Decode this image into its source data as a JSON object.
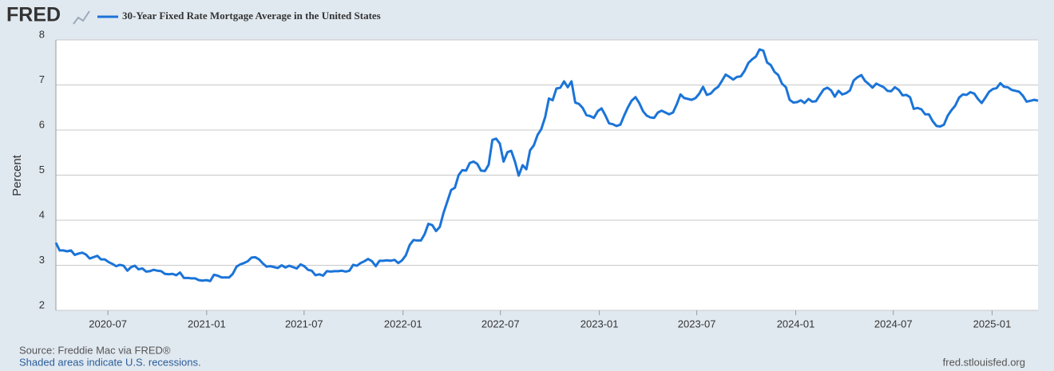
{
  "logo": "FRED",
  "footer": {
    "source": "Source: Freddie Mac via FRED®",
    "note": "Shaded areas indicate U.S. recessions.",
    "site": "fred.stlouisfed.org"
  },
  "chart_data": {
    "type": "line",
    "ylabel": "Percent",
    "grid": true,
    "xlim": [
      2020.232,
      2025.234
    ],
    "ylim": [
      2,
      8
    ],
    "yticks": [
      2,
      3,
      4,
      5,
      6,
      7,
      8
    ],
    "xticks": [
      {
        "value": 2020.497,
        "label": "2020-07"
      },
      {
        "value": 2021.0,
        "label": "2021-01"
      },
      {
        "value": 2021.496,
        "label": "2021-07"
      },
      {
        "value": 2022.0,
        "label": "2022-01"
      },
      {
        "value": 2022.496,
        "label": "2022-07"
      },
      {
        "value": 2023.0,
        "label": "2023-01"
      },
      {
        "value": 2023.496,
        "label": "2023-07"
      },
      {
        "value": 2024.0,
        "label": "2024-01"
      },
      {
        "value": 2024.497,
        "label": "2024-07"
      },
      {
        "value": 2025.0,
        "label": "2025-01"
      }
    ],
    "x": [
      2020.232,
      2020.251,
      2020.27,
      2020.289,
      2020.309,
      2020.328,
      2020.347,
      2020.366,
      2020.385,
      2020.404,
      2020.424,
      2020.443,
      2020.462,
      2020.481,
      2020.501,
      2020.52,
      2020.539,
      2020.558,
      2020.577,
      2020.596,
      2020.615,
      2020.634,
      2020.653,
      2020.672,
      2020.692,
      2020.711,
      2020.73,
      2020.749,
      2020.768,
      2020.787,
      2020.807,
      2020.826,
      2020.845,
      2020.864,
      2020.884,
      2020.903,
      2020.922,
      2020.941,
      2020.96,
      2020.979,
      2020.999,
      2021.018,
      2021.037,
      2021.056,
      2021.076,
      2021.095,
      2021.114,
      2021.133,
      2021.152,
      2021.171,
      2021.19,
      2021.209,
      2021.228,
      2021.247,
      2021.267,
      2021.286,
      2021.305,
      2021.324,
      2021.343,
      2021.362,
      2021.382,
      2021.401,
      2021.42,
      2021.439,
      2021.459,
      2021.478,
      2021.497,
      2021.516,
      2021.535,
      2021.554,
      2021.574,
      2021.593,
      2021.612,
      2021.631,
      2021.651,
      2021.67,
      2021.689,
      2021.708,
      2021.727,
      2021.746,
      2021.765,
      2021.784,
      2021.803,
      2021.822,
      2021.842,
      2021.861,
      2021.88,
      2021.899,
      2021.918,
      2021.937,
      2021.957,
      2021.976,
      2021.995,
      2022.014,
      2022.034,
      2022.053,
      2022.072,
      2022.091,
      2022.11,
      2022.129,
      2022.149,
      2022.168,
      2022.187,
      2022.206,
      2022.226,
      2022.245,
      2022.264,
      2022.283,
      2022.302,
      2022.321,
      2022.34,
      2022.359,
      2022.378,
      2022.397,
      2022.417,
      2022.436,
      2022.455,
      2022.474,
      2022.493,
      2022.512,
      2022.532,
      2022.551,
      2022.57,
      2022.589,
      2022.609,
      2022.628,
      2022.647,
      2022.666,
      2022.685,
      2022.704,
      2022.724,
      2022.743,
      2022.762,
      2022.781,
      2022.801,
      2022.82,
      2022.839,
      2022.858,
      2022.877,
      2022.896,
      2022.915,
      2022.934,
      2022.953,
      2022.972,
      2022.992,
      2023.011,
      2023.03,
      2023.049,
      2023.068,
      2023.087,
      2023.107,
      2023.126,
      2023.145,
      2023.164,
      2023.184,
      2023.203,
      2023.222,
      2023.241,
      2023.26,
      2023.279,
      2023.298,
      2023.317,
      2023.336,
      2023.355,
      2023.375,
      2023.394,
      2023.413,
      2023.432,
      2023.451,
      2023.47,
      2023.49,
      2023.509,
      2023.528,
      2023.547,
      2023.567,
      2023.586,
      2023.605,
      2023.624,
      2023.643,
      2023.662,
      2023.682,
      2023.701,
      2023.72,
      2023.739,
      2023.759,
      2023.778,
      2023.797,
      2023.816,
      2023.835,
      2023.854,
      2023.873,
      2023.892,
      2023.911,
      2023.93,
      2023.95,
      2023.969,
      2023.988,
      2024.007,
      2024.026,
      2024.045,
      2024.065,
      2024.084,
      2024.103,
      2024.122,
      2024.142,
      2024.161,
      2024.18,
      2024.199,
      2024.218,
      2024.237,
      2024.257,
      2024.276,
      2024.295,
      2024.314,
      2024.334,
      2024.353,
      2024.372,
      2024.391,
      2024.41,
      2024.429,
      2024.448,
      2024.467,
      2024.486,
      2024.505,
      2024.525,
      2024.544,
      2024.563,
      2024.582,
      2024.601,
      2024.62,
      2024.64,
      2024.659,
      2024.678,
      2024.697,
      2024.717,
      2024.736,
      2024.755,
      2024.774,
      2024.793,
      2024.812,
      2024.832,
      2024.851,
      2024.87,
      2024.889,
      2024.909,
      2024.928,
      2024.947,
      2024.966,
      2024.985,
      2025.004,
      2025.023,
      2025.042,
      2025.061,
      2025.08,
      2025.1,
      2025.119,
      2025.138,
      2025.157,
      2025.176,
      2025.195,
      2025.215,
      2025.234
    ],
    "series": [
      {
        "name": "30-Year Fixed Rate Mortgage Average in the United States",
        "color": "#1b74d8",
        "values": [
          3.5,
          3.33,
          3.33,
          3.31,
          3.33,
          3.23,
          3.26,
          3.28,
          3.24,
          3.15,
          3.18,
          3.21,
          3.13,
          3.13,
          3.07,
          3.03,
          2.98,
          3.01,
          2.99,
          2.88,
          2.96,
          2.99,
          2.91,
          2.93,
          2.86,
          2.87,
          2.9,
          2.88,
          2.87,
          2.81,
          2.8,
          2.81,
          2.78,
          2.84,
          2.72,
          2.72,
          2.71,
          2.71,
          2.67,
          2.66,
          2.67,
          2.65,
          2.79,
          2.77,
          2.73,
          2.73,
          2.73,
          2.81,
          2.97,
          3.02,
          3.05,
          3.09,
          3.17,
          3.18,
          3.13,
          3.04,
          2.97,
          2.98,
          2.96,
          2.94,
          3.0,
          2.95,
          2.99,
          2.96,
          2.93,
          3.02,
          2.98,
          2.9,
          2.88,
          2.78,
          2.8,
          2.77,
          2.87,
          2.86,
          2.87,
          2.87,
          2.88,
          2.86,
          2.88,
          3.01,
          2.99,
          3.05,
          3.09,
          3.14,
          3.09,
          2.98,
          3.1,
          3.1,
          3.11,
          3.1,
          3.12,
          3.05,
          3.11,
          3.22,
          3.45,
          3.56,
          3.55,
          3.55,
          3.69,
          3.92,
          3.89,
          3.76,
          3.85,
          4.16,
          4.42,
          4.67,
          4.72,
          5.0,
          5.11,
          5.1,
          5.27,
          5.3,
          5.25,
          5.1,
          5.09,
          5.23,
          5.78,
          5.81,
          5.7,
          5.3,
          5.51,
          5.54,
          5.3,
          4.99,
          5.22,
          5.13,
          5.55,
          5.66,
          5.89,
          6.02,
          6.29,
          6.7,
          6.66,
          6.92,
          6.94,
          7.08,
          6.95,
          7.08,
          6.61,
          6.58,
          6.49,
          6.33,
          6.31,
          6.27,
          6.42,
          6.48,
          6.33,
          6.15,
          6.13,
          6.09,
          6.12,
          6.32,
          6.5,
          6.65,
          6.73,
          6.6,
          6.42,
          6.32,
          6.28,
          6.27,
          6.39,
          6.43,
          6.39,
          6.35,
          6.39,
          6.57,
          6.79,
          6.71,
          6.69,
          6.67,
          6.71,
          6.81,
          6.96,
          6.78,
          6.81,
          6.9,
          6.96,
          7.09,
          7.23,
          7.18,
          7.12,
          7.18,
          7.19,
          7.31,
          7.49,
          7.57,
          7.63,
          7.79,
          7.76,
          7.5,
          7.44,
          7.29,
          7.22,
          7.03,
          6.95,
          6.67,
          6.61,
          6.62,
          6.66,
          6.6,
          6.69,
          6.63,
          6.64,
          6.77,
          6.9,
          6.94,
          6.88,
          6.74,
          6.87,
          6.79,
          6.82,
          6.88,
          7.1,
          7.17,
          7.22,
          7.09,
          7.02,
          6.94,
          7.03,
          6.99,
          6.95,
          6.87,
          6.86,
          6.95,
          6.89,
          6.77,
          6.78,
          6.73,
          6.47,
          6.49,
          6.46,
          6.35,
          6.35,
          6.2,
          6.09,
          6.08,
          6.12,
          6.32,
          6.44,
          6.54,
          6.72,
          6.79,
          6.78,
          6.84,
          6.81,
          6.69,
          6.6,
          6.72,
          6.85,
          6.91,
          6.93,
          7.04,
          6.96,
          6.95,
          6.89,
          6.87,
          6.85,
          6.76,
          6.63,
          6.65,
          6.67,
          6.65
        ]
      }
    ]
  }
}
